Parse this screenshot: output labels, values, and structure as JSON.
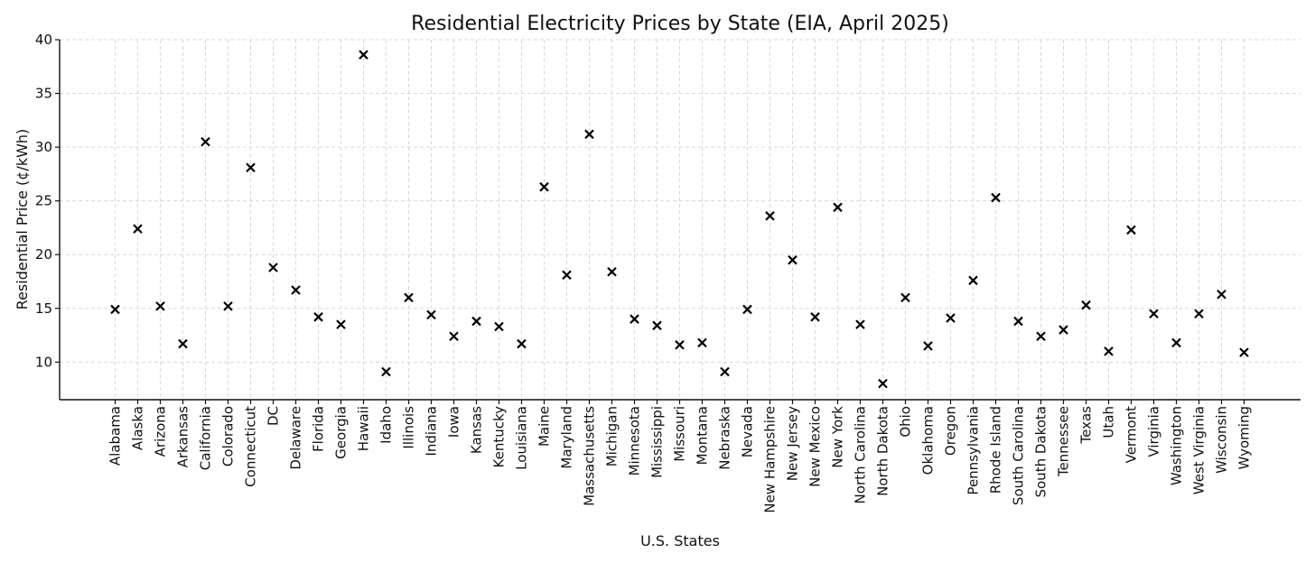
{
  "chart_data": {
    "type": "scatter",
    "title": "Residential Electricity Prices by State (EIA, April 2025)",
    "xlabel": "U.S. States",
    "ylabel": "Residential Price (¢/kWh)",
    "ylim": [
      6.5,
      40
    ],
    "yticks": [
      10,
      15,
      20,
      25,
      30,
      35,
      40
    ],
    "grid": true,
    "marker": "x",
    "marker_color": "#000000",
    "categories": [
      "Alabama",
      "Alaska",
      "Arizona",
      "Arkansas",
      "California",
      "Colorado",
      "Connecticut",
      "DC",
      "Delaware",
      "Florida",
      "Georgia",
      "Hawaii",
      "Idaho",
      "Illinois",
      "Indiana",
      "Iowa",
      "Kansas",
      "Kentucky",
      "Louisiana",
      "Maine",
      "Maryland",
      "Massachusetts",
      "Michigan",
      "Minnesota",
      "Mississippi",
      "Missouri",
      "Montana",
      "Nebraska",
      "Nevada",
      "New Hampshire",
      "New Jersey",
      "New Mexico",
      "New York",
      "North Carolina",
      "North Dakota",
      "Ohio",
      "Oklahoma",
      "Oregon",
      "Pennsylvania",
      "Rhode Island",
      "South Carolina",
      "South Dakota",
      "Tennessee",
      "Texas",
      "Utah",
      "Vermont",
      "Virginia",
      "Washington",
      "West Virginia",
      "Wisconsin",
      "Wyoming"
    ],
    "values": [
      14.9,
      22.4,
      15.2,
      11.7,
      30.5,
      15.2,
      28.1,
      18.8,
      16.7,
      14.2,
      13.5,
      38.6,
      9.1,
      16.0,
      14.4,
      12.4,
      13.8,
      13.3,
      11.7,
      26.3,
      18.1,
      31.2,
      18.4,
      14.0,
      13.4,
      11.6,
      11.8,
      9.1,
      14.9,
      23.6,
      19.5,
      14.2,
      24.4,
      13.5,
      8.0,
      16.0,
      11.5,
      14.1,
      17.6,
      25.3,
      13.8,
      12.4,
      13.0,
      15.3,
      11.0,
      22.3,
      14.5,
      11.8,
      14.5,
      16.3,
      10.9
    ]
  }
}
